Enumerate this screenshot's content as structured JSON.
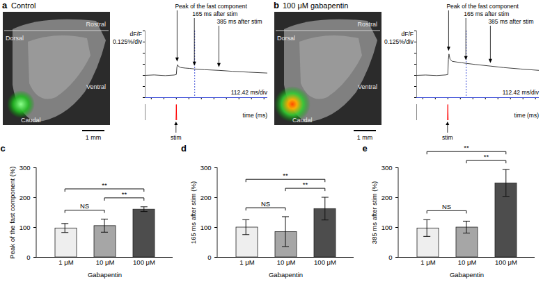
{
  "chart_data": [
    {
      "panel": "a",
      "type": "line",
      "title": "Control",
      "image_labels": [
        "Dorsal",
        "Rostral",
        "Ventral",
        "Caudal"
      ],
      "scale_bar": "1 mm",
      "y_label": "dF/F",
      "y_scale_label": "0.125%/div",
      "x_label": "time (ms)",
      "x_scale_label": "112.42 ms/div",
      "x": [
        -280,
        -200,
        -100,
        -20,
        0,
        5,
        10,
        20,
        40,
        80,
        120,
        165,
        250,
        385,
        500,
        650,
        820
      ],
      "series": [
        {
          "color": "#404040",
          "values": [
            0,
            0.005,
            -0.003,
            0.004,
            0.01,
            0.09,
            0.12,
            0.1,
            0.088,
            0.082,
            0.078,
            0.072,
            0.064,
            0.056,
            0.046,
            0.036,
            0.026
          ]
        }
      ],
      "stim_trace": {
        "label": "stim",
        "color": "#ff0000",
        "x": [
          -280,
          -3,
          0,
          3,
          820
        ],
        "values": [
          0,
          0,
          1,
          0,
          0
        ],
        "ylim": [
          0,
          1
        ]
      },
      "markers": [
        {
          "label": "Peak of the fast component",
          "x": 10
        },
        {
          "label": "165 ms after stim",
          "x": 165
        },
        {
          "label": "385 ms after stim",
          "x": 385
        }
      ],
      "xlim": [
        -280,
        820
      ],
      "xticks": [
        -224.84,
        -112.42,
        0,
        112.42,
        224.84,
        337.26,
        449.68,
        562.1,
        674.52,
        786.94
      ],
      "ylim": [
        -0.25,
        0.5
      ],
      "yticks": [
        -0.25,
        -0.125,
        0,
        0.125,
        0.25,
        0.375,
        0.5
      ],
      "tick_labels": false
    },
    {
      "panel": "b",
      "type": "line",
      "title": "100 μM gabapentin",
      "image_labels": [
        "Dorsal",
        "Rostral",
        "Ventral",
        "Caudal"
      ],
      "scale_bar": "1 mm",
      "y_label": "dF/F",
      "y_scale_label": "0.125%/div",
      "x_label": "time (ms)",
      "x_scale_label": "112.42 ms/div",
      "x": [
        -280,
        -200,
        -100,
        -20,
        0,
        5,
        10,
        20,
        40,
        80,
        120,
        165,
        250,
        385,
        500,
        650,
        820
      ],
      "series": [
        {
          "color": "#404040",
          "values": [
            0,
            0.004,
            -0.002,
            0.005,
            0.01,
            0.18,
            0.24,
            0.18,
            0.158,
            0.15,
            0.143,
            0.135,
            0.122,
            0.104,
            0.088,
            0.072,
            0.056
          ]
        }
      ],
      "stim_trace": {
        "label": "stim",
        "color": "#ff0000",
        "x": [
          -280,
          -3,
          0,
          3,
          820
        ],
        "values": [
          0,
          0,
          1,
          0,
          0
        ],
        "ylim": [
          0,
          1
        ]
      },
      "markers": [
        {
          "label": "Peak of the fast component",
          "x": 10
        },
        {
          "label": "165 ms after stim",
          "x": 165
        },
        {
          "label": "385 ms after stim",
          "x": 385
        }
      ],
      "xlim": [
        -280,
        820
      ],
      "xticks": [
        -224.84,
        -112.42,
        0,
        112.42,
        224.84,
        337.26,
        449.68,
        562.1,
        674.52,
        786.94
      ],
      "ylim": [
        -0.25,
        0.5
      ],
      "yticks": [
        -0.25,
        -0.125,
        0,
        0.125,
        0.25,
        0.375,
        0.5
      ],
      "tick_labels": false
    },
    {
      "panel": "c",
      "type": "bar",
      "categories": [
        "1 μM",
        "10 μM",
        "100 μM"
      ],
      "values": [
        97,
        105,
        160
      ],
      "errors": [
        15,
        22,
        8
      ],
      "colors": [
        "#eeeeee",
        "#a6a6a6",
        "#4d4d4d"
      ],
      "x_label": "Gabapentin",
      "y_label": "Peak of the fast component (%)",
      "ylim": [
        0,
        300
      ],
      "yticks": [
        0,
        100,
        200,
        300
      ],
      "significance": [
        {
          "categories": [
            "1 μM",
            "10 μM"
          ],
          "label": "NS"
        },
        {
          "categories": [
            "10 μM",
            "100 μM"
          ],
          "label": "**"
        },
        {
          "categories": [
            "1 μM",
            "100 μM"
          ],
          "label": "**"
        }
      ]
    },
    {
      "panel": "d",
      "type": "bar",
      "categories": [
        "1 μM",
        "10 μM",
        "100 μM"
      ],
      "values": [
        100,
        85,
        162
      ],
      "errors": [
        25,
        50,
        38
      ],
      "colors": [
        "#eeeeee",
        "#a6a6a6",
        "#4d4d4d"
      ],
      "x_label": "Gabapentin",
      "y_label": "165 ms after stim (%)",
      "ylim": [
        0,
        300
      ],
      "yticks": [
        0,
        100,
        200,
        300
      ],
      "significance": [
        {
          "categories": [
            "1 μM",
            "10 μM"
          ],
          "label": "NS"
        },
        {
          "categories": [
            "10 μM",
            "100 μM"
          ],
          "label": "**"
        },
        {
          "categories": [
            "1 μM",
            "100 μM"
          ],
          "label": "**"
        }
      ]
    },
    {
      "panel": "e",
      "type": "bar",
      "categories": [
        "1 μM",
        "10 μM",
        "100 μM"
      ],
      "values": [
        97,
        100,
        248
      ],
      "errors": [
        28,
        20,
        45
      ],
      "colors": [
        "#eeeeee",
        "#a6a6a6",
        "#4d4d4d"
      ],
      "x_label": "Gabapentin",
      "y_label": "385 ms after stim (%)",
      "ylim": [
        0,
        300
      ],
      "yticks": [
        0,
        100,
        200,
        300
      ],
      "significance": [
        {
          "categories": [
            "1 μM",
            "10 μM"
          ],
          "label": "NS"
        },
        {
          "categories": [
            "10 μM",
            "100 μM"
          ],
          "label": "**"
        },
        {
          "categories": [
            "1 μM",
            "100 μM"
          ],
          "label": "**"
        }
      ]
    }
  ]
}
